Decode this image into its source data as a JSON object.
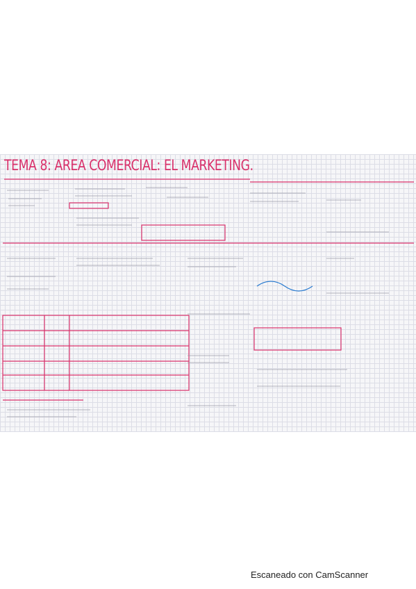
{
  "header": {
    "title": "TEMA 8: AREA COMERCIAL: EL MARKETING."
  },
  "footer": {
    "text": "Escaneado con CamScanner"
  }
}
